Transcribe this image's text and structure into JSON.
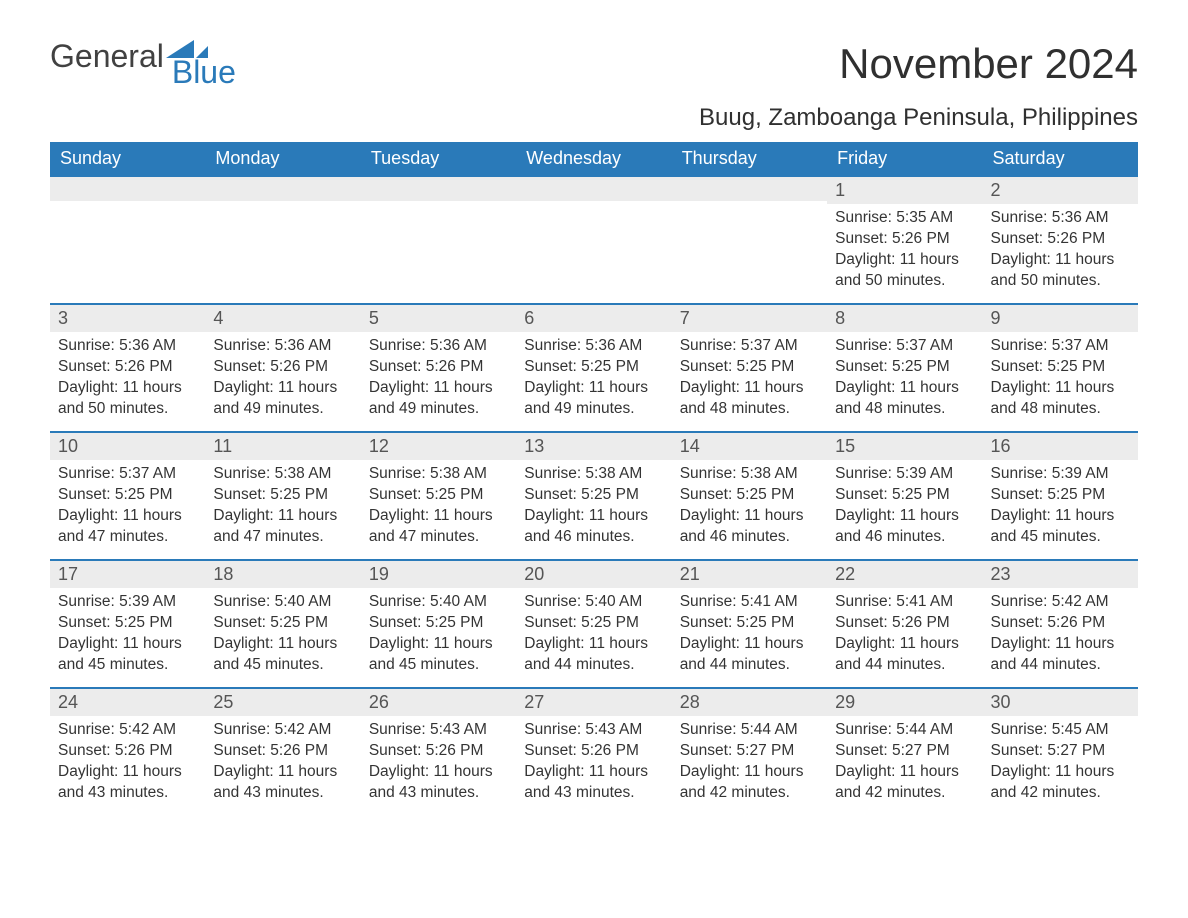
{
  "logo": {
    "general": "General",
    "blue": "Blue",
    "sail_color": "#2a7ab9",
    "general_color": "#414141",
    "blue_color": "#2a7ab9"
  },
  "header": {
    "month_title": "November 2024",
    "location": "Buug, Zamboanga Peninsula, Philippines"
  },
  "style": {
    "header_bg": "#2a7ab9",
    "header_text": "#ffffff",
    "row_border": "#2a7ab9",
    "daynum_bg": "#ececec",
    "daynum_text": "#555555",
    "body_text": "#343434",
    "page_bg": "#ffffff",
    "month_title_fontsize": 42,
    "location_fontsize": 24,
    "dayheader_fontsize": 18,
    "cell_fontsize": 15.5
  },
  "day_headers": [
    "Sunday",
    "Monday",
    "Tuesday",
    "Wednesday",
    "Thursday",
    "Friday",
    "Saturday"
  ],
  "weeks": [
    [
      null,
      null,
      null,
      null,
      null,
      {
        "n": "1",
        "sunrise": "Sunrise: 5:35 AM",
        "sunset": "Sunset: 5:26 PM",
        "daylight": "Daylight: 11 hours and 50 minutes."
      },
      {
        "n": "2",
        "sunrise": "Sunrise: 5:36 AM",
        "sunset": "Sunset: 5:26 PM",
        "daylight": "Daylight: 11 hours and 50 minutes."
      }
    ],
    [
      {
        "n": "3",
        "sunrise": "Sunrise: 5:36 AM",
        "sunset": "Sunset: 5:26 PM",
        "daylight": "Daylight: 11 hours and 50 minutes."
      },
      {
        "n": "4",
        "sunrise": "Sunrise: 5:36 AM",
        "sunset": "Sunset: 5:26 PM",
        "daylight": "Daylight: 11 hours and 49 minutes."
      },
      {
        "n": "5",
        "sunrise": "Sunrise: 5:36 AM",
        "sunset": "Sunset: 5:26 PM",
        "daylight": "Daylight: 11 hours and 49 minutes."
      },
      {
        "n": "6",
        "sunrise": "Sunrise: 5:36 AM",
        "sunset": "Sunset: 5:25 PM",
        "daylight": "Daylight: 11 hours and 49 minutes."
      },
      {
        "n": "7",
        "sunrise": "Sunrise: 5:37 AM",
        "sunset": "Sunset: 5:25 PM",
        "daylight": "Daylight: 11 hours and 48 minutes."
      },
      {
        "n": "8",
        "sunrise": "Sunrise: 5:37 AM",
        "sunset": "Sunset: 5:25 PM",
        "daylight": "Daylight: 11 hours and 48 minutes."
      },
      {
        "n": "9",
        "sunrise": "Sunrise: 5:37 AM",
        "sunset": "Sunset: 5:25 PM",
        "daylight": "Daylight: 11 hours and 48 minutes."
      }
    ],
    [
      {
        "n": "10",
        "sunrise": "Sunrise: 5:37 AM",
        "sunset": "Sunset: 5:25 PM",
        "daylight": "Daylight: 11 hours and 47 minutes."
      },
      {
        "n": "11",
        "sunrise": "Sunrise: 5:38 AM",
        "sunset": "Sunset: 5:25 PM",
        "daylight": "Daylight: 11 hours and 47 minutes."
      },
      {
        "n": "12",
        "sunrise": "Sunrise: 5:38 AM",
        "sunset": "Sunset: 5:25 PM",
        "daylight": "Daylight: 11 hours and 47 minutes."
      },
      {
        "n": "13",
        "sunrise": "Sunrise: 5:38 AM",
        "sunset": "Sunset: 5:25 PM",
        "daylight": "Daylight: 11 hours and 46 minutes."
      },
      {
        "n": "14",
        "sunrise": "Sunrise: 5:38 AM",
        "sunset": "Sunset: 5:25 PM",
        "daylight": "Daylight: 11 hours and 46 minutes."
      },
      {
        "n": "15",
        "sunrise": "Sunrise: 5:39 AM",
        "sunset": "Sunset: 5:25 PM",
        "daylight": "Daylight: 11 hours and 46 minutes."
      },
      {
        "n": "16",
        "sunrise": "Sunrise: 5:39 AM",
        "sunset": "Sunset: 5:25 PM",
        "daylight": "Daylight: 11 hours and 45 minutes."
      }
    ],
    [
      {
        "n": "17",
        "sunrise": "Sunrise: 5:39 AM",
        "sunset": "Sunset: 5:25 PM",
        "daylight": "Daylight: 11 hours and 45 minutes."
      },
      {
        "n": "18",
        "sunrise": "Sunrise: 5:40 AM",
        "sunset": "Sunset: 5:25 PM",
        "daylight": "Daylight: 11 hours and 45 minutes."
      },
      {
        "n": "19",
        "sunrise": "Sunrise: 5:40 AM",
        "sunset": "Sunset: 5:25 PM",
        "daylight": "Daylight: 11 hours and 45 minutes."
      },
      {
        "n": "20",
        "sunrise": "Sunrise: 5:40 AM",
        "sunset": "Sunset: 5:25 PM",
        "daylight": "Daylight: 11 hours and 44 minutes."
      },
      {
        "n": "21",
        "sunrise": "Sunrise: 5:41 AM",
        "sunset": "Sunset: 5:25 PM",
        "daylight": "Daylight: 11 hours and 44 minutes."
      },
      {
        "n": "22",
        "sunrise": "Sunrise: 5:41 AM",
        "sunset": "Sunset: 5:26 PM",
        "daylight": "Daylight: 11 hours and 44 minutes."
      },
      {
        "n": "23",
        "sunrise": "Sunrise: 5:42 AM",
        "sunset": "Sunset: 5:26 PM",
        "daylight": "Daylight: 11 hours and 44 minutes."
      }
    ],
    [
      {
        "n": "24",
        "sunrise": "Sunrise: 5:42 AM",
        "sunset": "Sunset: 5:26 PM",
        "daylight": "Daylight: 11 hours and 43 minutes."
      },
      {
        "n": "25",
        "sunrise": "Sunrise: 5:42 AM",
        "sunset": "Sunset: 5:26 PM",
        "daylight": "Daylight: 11 hours and 43 minutes."
      },
      {
        "n": "26",
        "sunrise": "Sunrise: 5:43 AM",
        "sunset": "Sunset: 5:26 PM",
        "daylight": "Daylight: 11 hours and 43 minutes."
      },
      {
        "n": "27",
        "sunrise": "Sunrise: 5:43 AM",
        "sunset": "Sunset: 5:26 PM",
        "daylight": "Daylight: 11 hours and 43 minutes."
      },
      {
        "n": "28",
        "sunrise": "Sunrise: 5:44 AM",
        "sunset": "Sunset: 5:27 PM",
        "daylight": "Daylight: 11 hours and 42 minutes."
      },
      {
        "n": "29",
        "sunrise": "Sunrise: 5:44 AM",
        "sunset": "Sunset: 5:27 PM",
        "daylight": "Daylight: 11 hours and 42 minutes."
      },
      {
        "n": "30",
        "sunrise": "Sunrise: 5:45 AM",
        "sunset": "Sunset: 5:27 PM",
        "daylight": "Daylight: 11 hours and 42 minutes."
      }
    ]
  ]
}
